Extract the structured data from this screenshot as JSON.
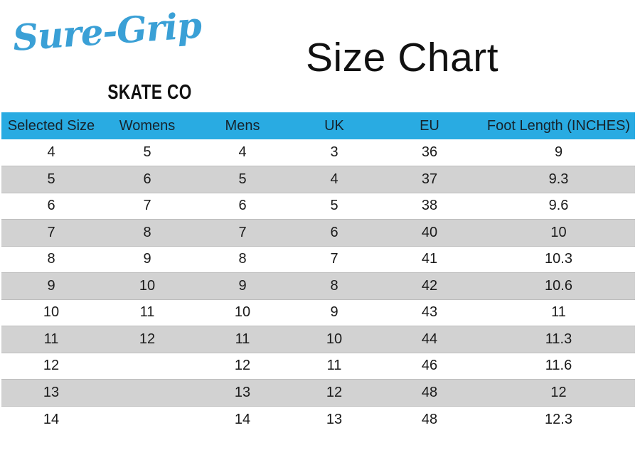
{
  "logo": {
    "brand": "Sure-Grip",
    "subtitle": "SKATE CO",
    "brand_color": "#3AA0D6"
  },
  "page_title": "Size Chart",
  "chart_data": {
    "type": "table",
    "title": "Size Chart",
    "columns": [
      "Selected Size",
      "Womens",
      "Mens",
      "UK",
      "EU",
      "Foot Length (INCHES)"
    ],
    "rows": [
      [
        "4",
        "5",
        "4",
        "3",
        "36",
        "9"
      ],
      [
        "5",
        "6",
        "5",
        "4",
        "37",
        "9.3"
      ],
      [
        "6",
        "7",
        "6",
        "5",
        "38",
        "9.6"
      ],
      [
        "7",
        "8",
        "7",
        "6",
        "40",
        "10"
      ],
      [
        "8",
        "9",
        "8",
        "7",
        "41",
        "10.3"
      ],
      [
        "9",
        "10",
        "9",
        "8",
        "42",
        "10.6"
      ],
      [
        "10",
        "11",
        "10",
        "9",
        "43",
        "11"
      ],
      [
        "11",
        "12",
        "11",
        "10",
        "44",
        "11.3"
      ],
      [
        "12",
        "",
        "12",
        "11",
        "46",
        "11.6"
      ],
      [
        "13",
        "",
        "13",
        "12",
        "48",
        "12"
      ],
      [
        "14",
        "",
        "14",
        "13",
        "48",
        "12.3"
      ]
    ],
    "layout": {
      "striped": "even data rows shaded",
      "header_position": "top"
    },
    "style": {
      "header_bg": "#29ABE2",
      "stripe_bg": "#D2D2D2",
      "stripe_border": "#BDBDBD",
      "text_color": "#1A1A1A"
    }
  }
}
